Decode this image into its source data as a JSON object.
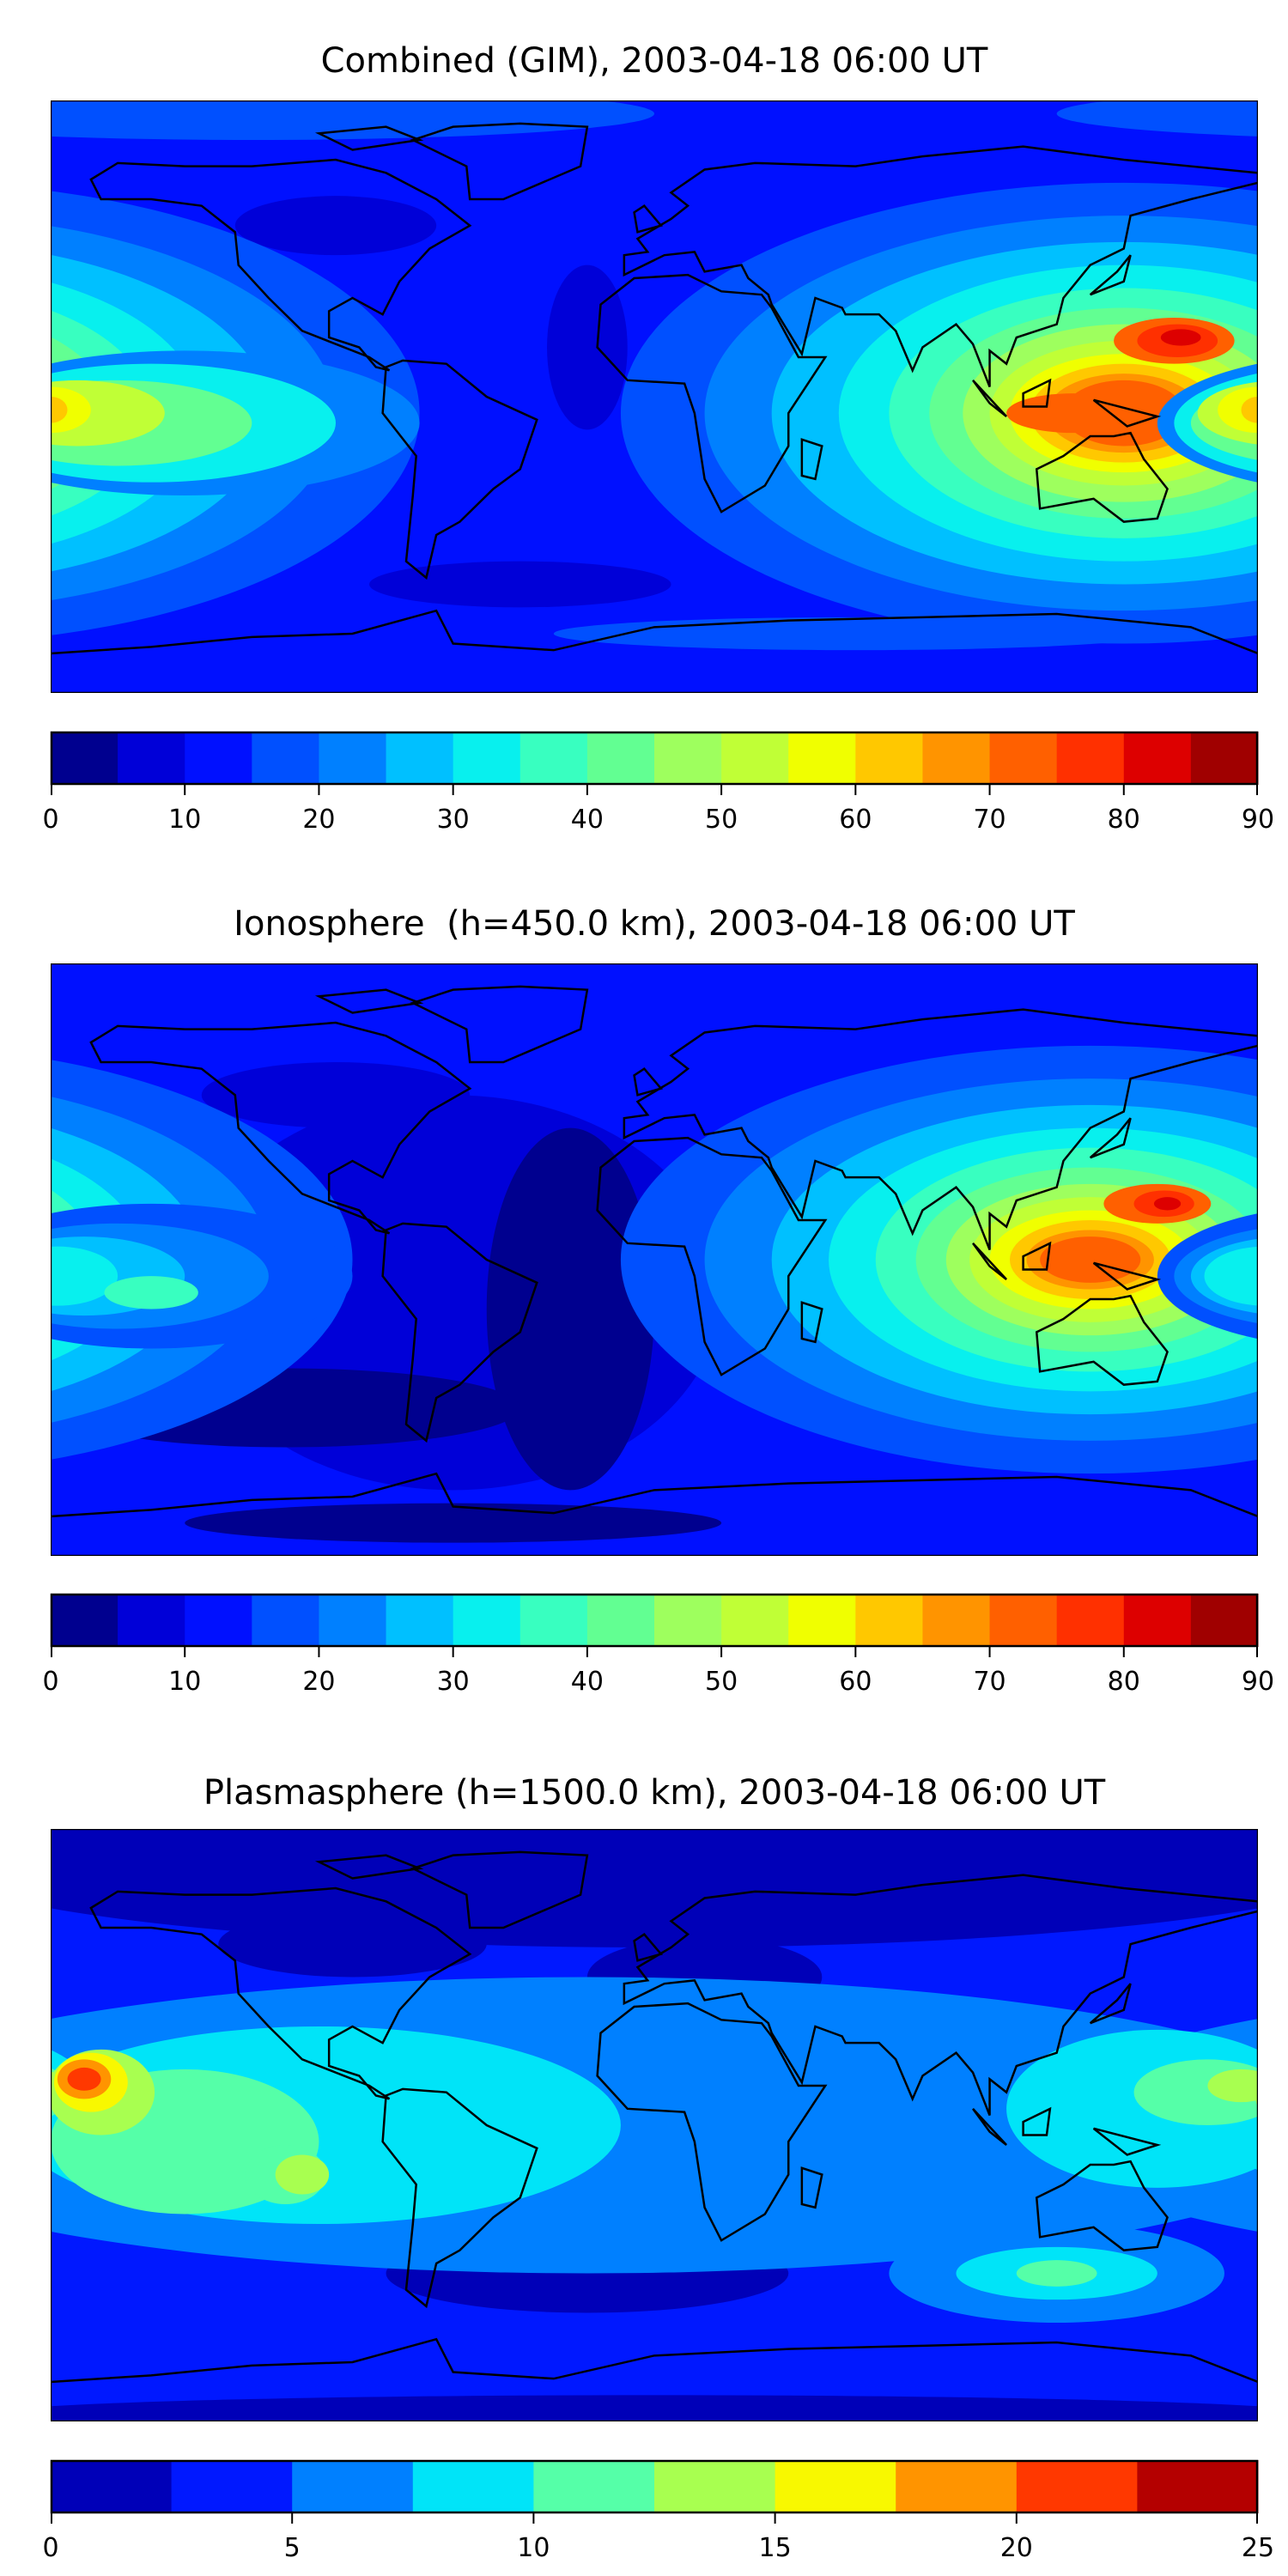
{
  "chart_data": [
    {
      "type": "heatmap",
      "title": "Combined (GIM), 2003-04-18 06:00 UT",
      "colorbar": {
        "range": [
          0,
          90
        ],
        "step": 5,
        "ticks": [
          "0",
          "10",
          "20",
          "30",
          "40",
          "50",
          "60",
          "70",
          "80",
          "90"
        ],
        "colors": [
          "#00008f",
          "#0000d8",
          "#0010ff",
          "#0050ff",
          "#0080ff",
          "#00c0ff",
          "#08f0ee",
          "#38ffc0",
          "#62ff92",
          "#9eff5e",
          "#c0ff36",
          "#f0ff00",
          "#ffc800",
          "#ff9400",
          "#ff6000",
          "#ff3000",
          "#dd0000",
          "#a00000"
        ]
      },
      "features": {
        "max_region": "Southeast Asia / western Pacific",
        "approx_max": 85
      }
    },
    {
      "type": "heatmap",
      "title": "Ionosphere  (h=450.0 km), 2003-04-18 06:00 UT",
      "colorbar": {
        "range": [
          0,
          90
        ],
        "step": 5,
        "ticks": [
          "0",
          "10",
          "20",
          "30",
          "40",
          "50",
          "60",
          "70",
          "80",
          "90"
        ],
        "colors": [
          "#00008f",
          "#0000d8",
          "#0010ff",
          "#0050ff",
          "#0080ff",
          "#00c0ff",
          "#08f0ee",
          "#38ffc0",
          "#62ff92",
          "#9eff5e",
          "#c0ff36",
          "#f0ff00",
          "#ffc800",
          "#ff9400",
          "#ff6000",
          "#ff3000",
          "#dd0000",
          "#a00000"
        ]
      },
      "features": {
        "max_region": "Southeast Asia / western Pacific",
        "approx_max": 80
      }
    },
    {
      "type": "heatmap",
      "title": "Plasmasphere (h=1500.0 km), 2003-04-18 06:00 UT",
      "colorbar": {
        "range": [
          0,
          25
        ],
        "step": 2.5,
        "ticks": [
          "0",
          "5",
          "10",
          "15",
          "20",
          "25"
        ],
        "colors": [
          "#0000b8",
          "#0018ff",
          "#0080ff",
          "#00e4f8",
          "#55ffa8",
          "#a8ff50",
          "#f8f800",
          "#ff9400",
          "#ff3800",
          "#b40000"
        ]
      },
      "features": {
        "max_region": "Central Pacific",
        "approx_max": 22
      }
    }
  ]
}
